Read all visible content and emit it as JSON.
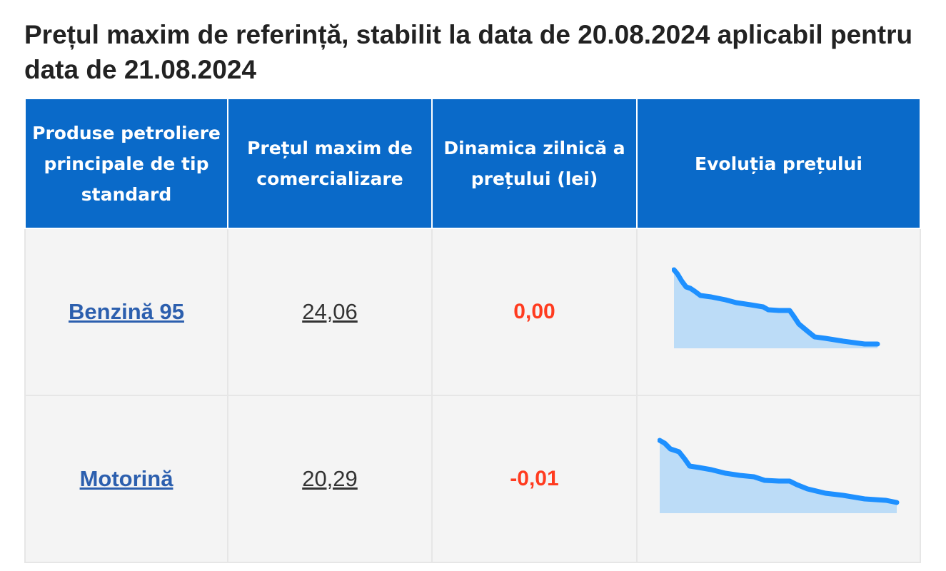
{
  "title": "Prețul maxim de referință, stabilit la data de 20.08.2024 aplicabil pentru data de 21.08.2024",
  "columns": [
    "Produse petroliere principale de tip standard",
    "Prețul maxim de comercializare",
    "Dinamica zilnică a prețului (lei)",
    "Evoluția prețului"
  ],
  "rows": [
    {
      "product": "Benzină 95",
      "price": "24,06",
      "delta": "0,00"
    },
    {
      "product": "Motorină",
      "price": "20,29",
      "delta": "-0,01"
    }
  ],
  "colors": {
    "header_bg": "#0a6ac9",
    "delta": "#ff3b1f",
    "link": "#2c5fae",
    "spark_line": "#1e90ff",
    "spark_fill": "#bcdcf7"
  }
}
